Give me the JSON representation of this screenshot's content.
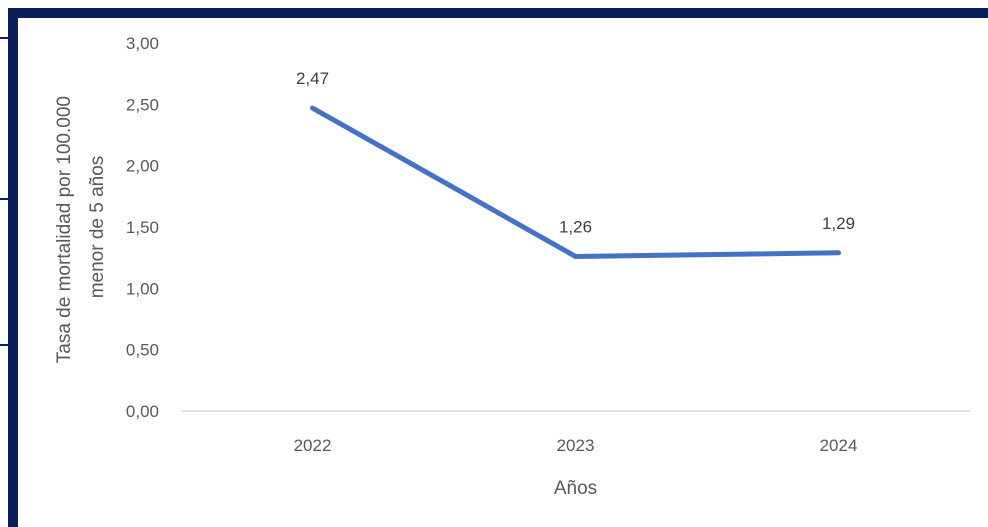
{
  "chart_data": {
    "type": "line",
    "categories": [
      "2022",
      "2023",
      "2024"
    ],
    "series": [
      {
        "values": [
          2.47,
          1.26,
          1.29
        ],
        "color": "#4472c4"
      }
    ],
    "data_labels": [
      "2,47",
      "1,26",
      "1,29"
    ],
    "yticks": [
      "0,00",
      "0,50",
      "1,00",
      "1,50",
      "2,00",
      "2,50",
      "3,00"
    ],
    "ylim": [
      0,
      3
    ],
    "xlabel": "Años",
    "ylabel_lines": [
      "Tasa de mortalidad por 100.000",
      "menor de 5 años"
    ],
    "grid": false,
    "legend": "none"
  },
  "colors": {
    "frame": "#0b1f5c",
    "series": "#4472c4",
    "axis": "#d9d9d9"
  }
}
